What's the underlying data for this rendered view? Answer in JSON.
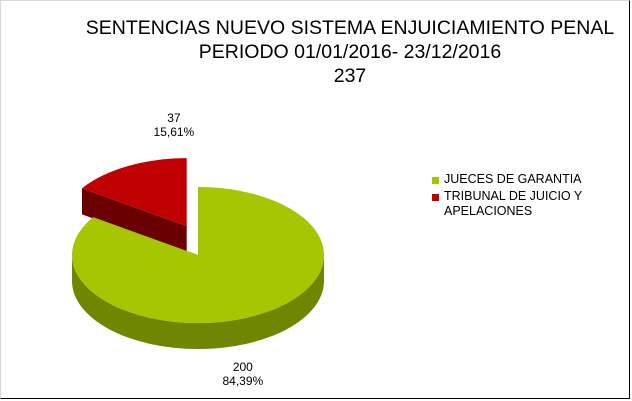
{
  "chart_data": {
    "type": "pie",
    "title_lines": [
      "SENTENCIAS NUEVO SISTEMA ENJUICIAMIENTO PENAL",
      "PERIODO 01/01/2016- 23/12/2016",
      "237"
    ],
    "three_d": true,
    "exploded_slice": "TRIBUNAL DE JUICIO Y APELACIONES",
    "legend_position": "right",
    "slices": [
      {
        "label": "JUECES DE GARANTIA",
        "value": 200,
        "percent": "84,39%",
        "value_text": "200",
        "color": "#a5c600",
        "side_color": "#6f8600"
      },
      {
        "label": "TRIBUNAL DE JUICIO Y APELACIONES",
        "value": 37,
        "percent": "15,61%",
        "value_text": "37",
        "color": "#c00000",
        "side_color": "#6a0000"
      }
    ],
    "legend": [
      {
        "label_lines": [
          "JUECES DE GARANTIA"
        ],
        "color": "#a5c600"
      },
      {
        "label_lines": [
          "TRIBUNAL DE JUICIO Y",
          "APELACIONES"
        ],
        "color": "#c00000"
      }
    ]
  }
}
